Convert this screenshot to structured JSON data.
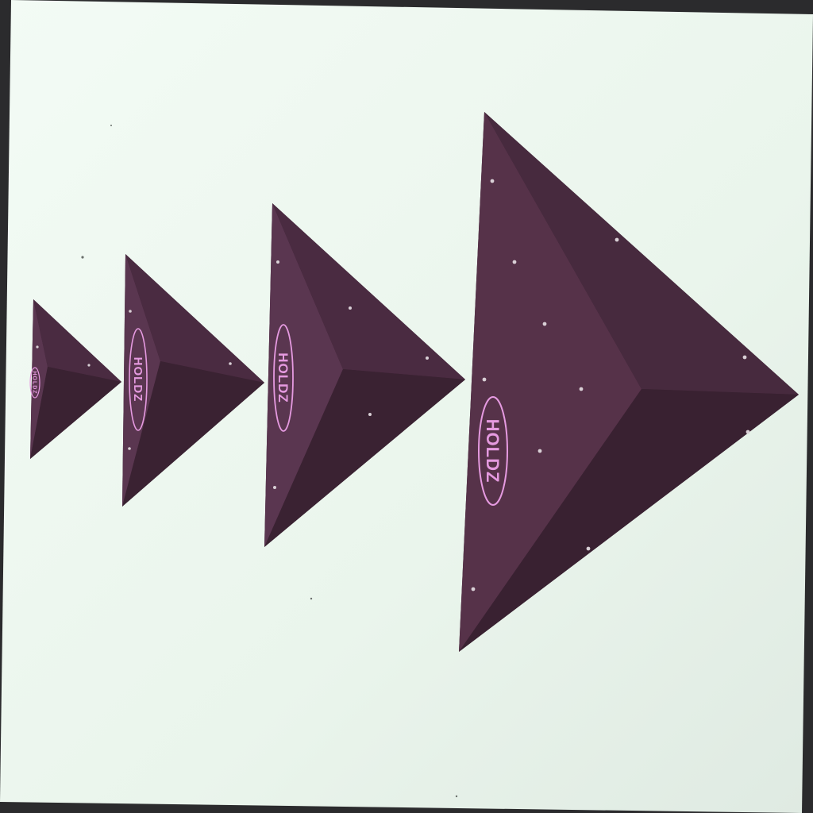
{
  "photo": {
    "subject": "climbing-holds",
    "colors": {
      "wall": "#eef7f0",
      "wall_shade": "#e1ece4",
      "hold_dark": "#3f2536",
      "hold_mid": "#4d2d43",
      "hold_light": "#5a3650",
      "logo": "#e59ae0",
      "frame": "#2b2b2d",
      "bolt": "#d9d0d6"
    }
  },
  "holds": [
    {
      "brand": "HOLDZ",
      "size": "xs"
    },
    {
      "brand": "HOLDZ",
      "size": "s"
    },
    {
      "brand": "HOLDZ",
      "size": "m"
    },
    {
      "brand": "HOLDZ",
      "size": "l"
    }
  ]
}
